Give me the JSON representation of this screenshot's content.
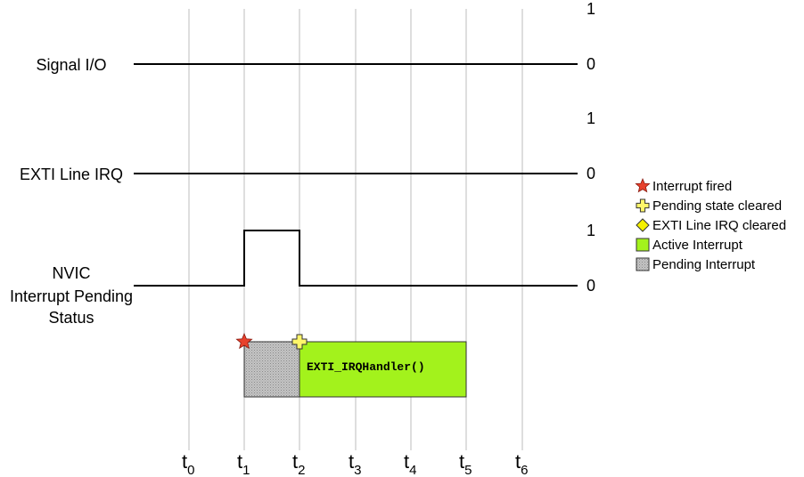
{
  "signals": [
    {
      "label_lines": [
        "Signal I/O"
      ],
      "high_label": "1",
      "low_label": "0"
    },
    {
      "label_lines": [
        "EXTI Line IRQ"
      ],
      "high_label": "1",
      "low_label": "0"
    },
    {
      "label_lines": [
        "NVIC",
        "Interrupt Pending",
        "Status"
      ],
      "high_label": "1",
      "low_label": "0"
    }
  ],
  "time_ticks": [
    {
      "base": "t",
      "sub": "0"
    },
    {
      "base": "t",
      "sub": "1"
    },
    {
      "base": "t",
      "sub": "2"
    },
    {
      "base": "t",
      "sub": "3"
    },
    {
      "base": "t",
      "sub": "4"
    },
    {
      "base": "t",
      "sub": "5"
    },
    {
      "base": "t",
      "sub": "6"
    }
  ],
  "pending_pulse": {
    "start_tick": 1,
    "end_tick": 2
  },
  "timeline": {
    "pending_block": {
      "start_tick": 1,
      "end_tick": 2
    },
    "active_block": {
      "start_tick": 2,
      "end_tick": 5,
      "label": "EXTI_IRQHandler()"
    },
    "interrupt_fired_tick": 1,
    "pending_cleared_tick": 2
  },
  "legend": [
    {
      "symbol": "star",
      "color": "#e8412c",
      "label": "Interrupt fired"
    },
    {
      "symbol": "plus",
      "color": "#fff66a",
      "label": "Pending state cleared"
    },
    {
      "symbol": "diamond",
      "color": "#f4f000",
      "label": "EXTI Line IRQ cleared"
    },
    {
      "symbol": "square",
      "color": "#a3f21c",
      "label": "Active Interrupt"
    },
    {
      "symbol": "dotted-square",
      "color": "#b8b8b8",
      "label": "Pending Interrupt"
    }
  ],
  "colors": {
    "active": "#a3f21c",
    "pending": "#b8b8b8",
    "star": "#e8412c",
    "plus": "#fff66a",
    "diamond": "#f4f000"
  }
}
